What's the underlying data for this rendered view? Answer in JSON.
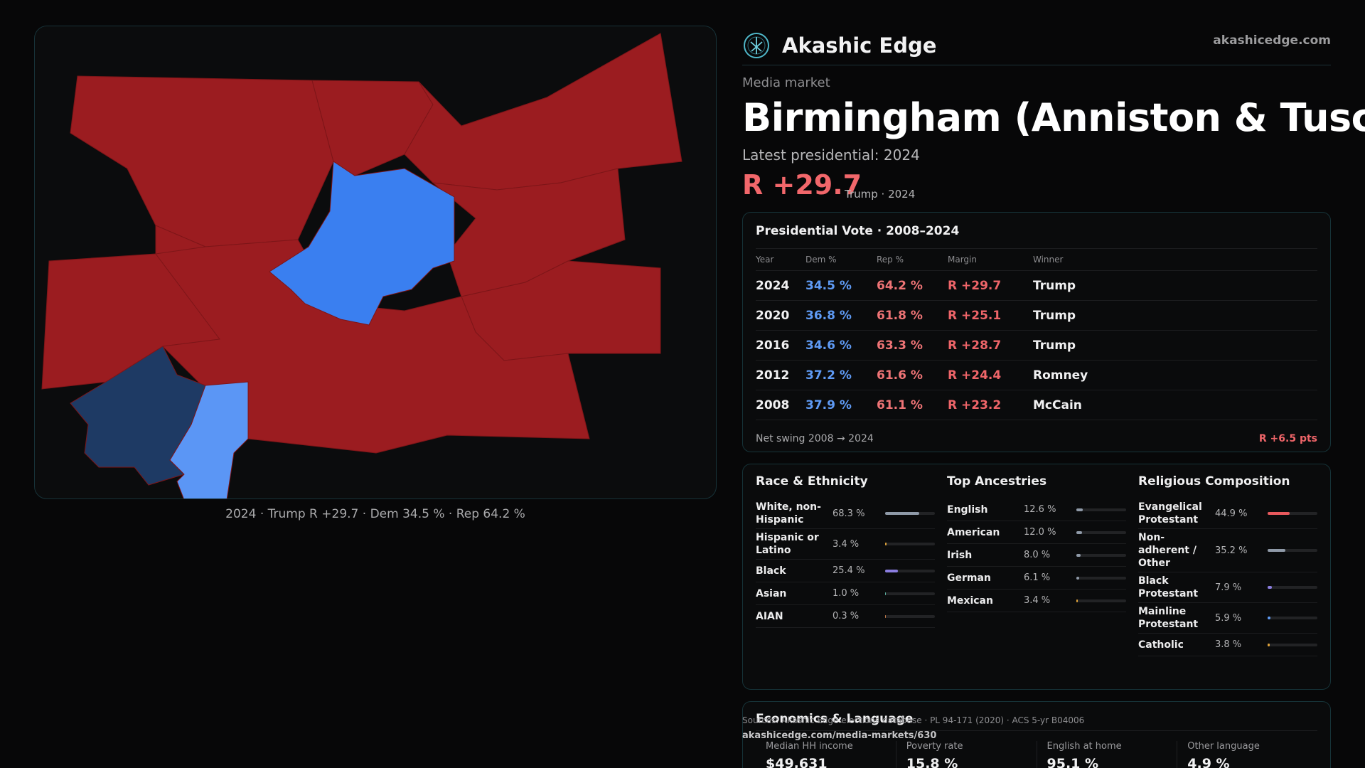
{
  "brand": {
    "name": "Akashic Edge",
    "url": "akashicedge.com",
    "logo_icon": "tree-of-life-icon"
  },
  "market": {
    "kind": "Media market",
    "title": "Birmingham (Anniston & Tuscaloosa)",
    "latest_label": "Latest presidential: 2024",
    "margin": "R +29.7",
    "margin_sub": "Trump · 2024"
  },
  "map": {
    "caption": "2024 · Trump R +29.7 · Dem 34.5 % · Rep 64.2 %",
    "colors": {
      "strong_r": "#9b1c20",
      "lean_d": "#3a7ff0",
      "light_d": "#5b96f5",
      "dark_d": "#1e3a64"
    }
  },
  "vote": {
    "title": "Presidential Vote · 2008–2024",
    "headers": {
      "year": "Year",
      "dem": "Dem %",
      "rep": "Rep %",
      "margin": "Margin",
      "winner": "Winner"
    },
    "rows": [
      {
        "year": "2024",
        "dem": "34.5 %",
        "rep": "64.2 %",
        "margin": "R +29.7",
        "winner": "Trump"
      },
      {
        "year": "2020",
        "dem": "36.8 %",
        "rep": "61.8 %",
        "margin": "R +25.1",
        "winner": "Trump"
      },
      {
        "year": "2016",
        "dem": "34.6 %",
        "rep": "63.3 %",
        "margin": "R +28.7",
        "winner": "Trump"
      },
      {
        "year": "2012",
        "dem": "37.2 %",
        "rep": "61.6 %",
        "margin": "R +24.4",
        "winner": "Romney"
      },
      {
        "year": "2008",
        "dem": "37.9 %",
        "rep": "61.1 %",
        "margin": "R +23.2",
        "winner": "McCain"
      }
    ],
    "swing_label": "Net swing 2008 → 2024",
    "swing_value": "R +6.5 pts"
  },
  "race": {
    "title": "Race & Ethnicity",
    "items": [
      {
        "label": "White, non-Hispanic",
        "value": "68.3 %",
        "pct": 68.3,
        "color": "#8f9aa8"
      },
      {
        "label": "Hispanic or Latino",
        "value": "3.4 %",
        "pct": 3.4,
        "color": "#e0a33a"
      },
      {
        "label": "Black",
        "value": "25.4 %",
        "pct": 25.4,
        "color": "#8b7ee0"
      },
      {
        "label": "Asian",
        "value": "1.0 %",
        "pct": 1.0,
        "color": "#5bb0a0"
      },
      {
        "label": "AIAN",
        "value": "0.3 %",
        "pct": 0.3,
        "color": "#c07a4a"
      }
    ]
  },
  "ancestry": {
    "title": "Top Ancestries",
    "items": [
      {
        "label": "English",
        "value": "12.6 %",
        "pct": 12.6,
        "color": "#8f9aa8"
      },
      {
        "label": "American",
        "value": "12.0 %",
        "pct": 12.0,
        "color": "#8f9aa8"
      },
      {
        "label": "Irish",
        "value": "8.0 %",
        "pct": 8.0,
        "color": "#8f9aa8"
      },
      {
        "label": "German",
        "value": "6.1 %",
        "pct": 6.1,
        "color": "#8f9aa8"
      },
      {
        "label": "Mexican",
        "value": "3.4 %",
        "pct": 3.4,
        "color": "#e0a33a"
      }
    ]
  },
  "religion": {
    "title": "Religious Composition",
    "items": [
      {
        "label": "Evangelical Protestant",
        "value": "44.9 %",
        "pct": 44.9,
        "color": "#e8595d"
      },
      {
        "label": "Non-adherent / Other",
        "value": "35.2 %",
        "pct": 35.2,
        "color": "#8f9aa8"
      },
      {
        "label": "Black Protestant",
        "value": "7.9 %",
        "pct": 7.9,
        "color": "#8b7ee0"
      },
      {
        "label": "Mainline Protestant",
        "value": "5.9 %",
        "pct": 5.9,
        "color": "#5f9bf5"
      },
      {
        "label": "Catholic",
        "value": "3.8 %",
        "pct": 3.8,
        "color": "#e0a33a"
      }
    ]
  },
  "economics": {
    "title": "Economics & Language",
    "cells": [
      {
        "label": "Median HH income",
        "value": "$49,631"
      },
      {
        "label": "Poverty rate",
        "value": "15.8 %"
      },
      {
        "label": "English at home",
        "value": "95.1 %"
      },
      {
        "label": "Other language",
        "value": "4.9 %"
      }
    ]
  },
  "footer": {
    "sources": "Sources: Akashic Edge elections database · PL 94-171 (2020) · ACS 5-yr B04006",
    "url": "akashicedge.com/media-markets/630"
  }
}
